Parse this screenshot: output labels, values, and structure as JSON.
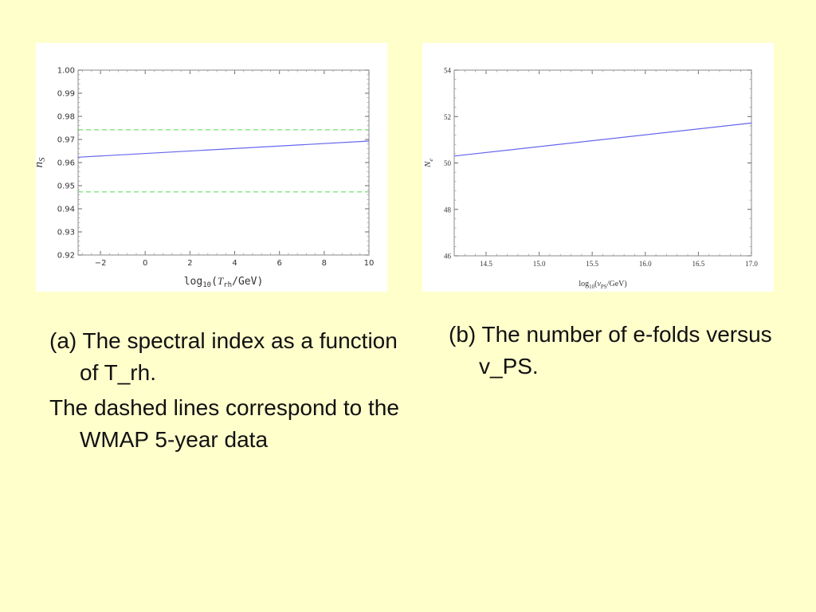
{
  "slide": {
    "background": "#ffffcc"
  },
  "captions": {
    "a_title": "(a) The spectral index as a function of T_rh.",
    "a_note": "The dashed lines correspond to the WMAP 5-year data",
    "b_title": "(b) The number of e-folds versus v_PS."
  },
  "chart_data": [
    {
      "type": "line",
      "xlim": [
        -3,
        10
      ],
      "ylim": [
        0.92,
        1.0
      ],
      "x_ticks": [
        -2,
        0,
        2,
        4,
        6,
        8,
        10
      ],
      "x_tick_labels": [
        "−2",
        "0",
        "2",
        "4",
        "6",
        "8",
        "10"
      ],
      "y_ticks": [
        0.92,
        0.93,
        0.94,
        0.95,
        0.96,
        0.97,
        0.98,
        0.99,
        1.0
      ],
      "y_tick_labels": [
        "0.92",
        "0.93",
        "0.94",
        "0.95",
        "0.96",
        "0.97",
        "0.98",
        "0.99",
        "1.00"
      ],
      "xlabel": {
        "pre": "log",
        "sub": "10",
        "mid": "(",
        "var": "T",
        "varsub": "rh",
        "post": "/GeV)"
      },
      "ylabel": {
        "var": "n",
        "sub": "S"
      },
      "grid": false,
      "series": [
        {
          "x": [
            -3,
            10
          ],
          "y": [
            0.9623,
            0.9693
          ],
          "color": "#6666ee",
          "style": "solid"
        },
        {
          "x": [
            -3,
            10
          ],
          "y": [
            0.9742,
            0.9742
          ],
          "color": "#66dd66",
          "style": "dashed"
        },
        {
          "x": [
            -3,
            10
          ],
          "y": [
            0.9473,
            0.9473
          ],
          "color": "#66dd66",
          "style": "dashed"
        }
      ]
    },
    {
      "type": "line",
      "xlim": [
        14.2,
        17.0
      ],
      "ylim": [
        46,
        54
      ],
      "x_ticks": [
        14.5,
        15.0,
        15.5,
        16.0,
        16.5,
        17.0
      ],
      "x_tick_labels": [
        "14.5",
        "15.0",
        "15.5",
        "16.0",
        "16.5",
        "17.0"
      ],
      "y_ticks": [
        46,
        48,
        50,
        52,
        54
      ],
      "y_tick_labels": [
        "46",
        "48",
        "50",
        "52",
        "54"
      ],
      "xlabel": {
        "pre": "log",
        "sub": "10",
        "mid": "(",
        "var": "v",
        "varsub": "PS",
        "post": "/GeV)"
      },
      "ylabel": {
        "var": "N",
        "sub": "e"
      },
      "grid": false,
      "series": [
        {
          "x": [
            14.2,
            17.0
          ],
          "y": [
            50.3,
            51.72
          ],
          "color": "#6666ee",
          "style": "solid"
        }
      ]
    }
  ]
}
